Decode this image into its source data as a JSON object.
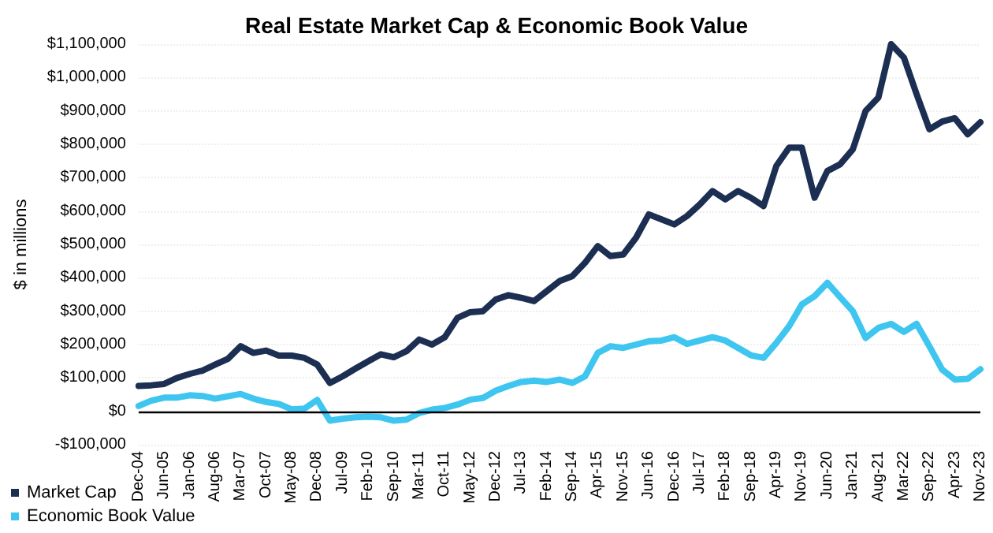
{
  "chart_data": {
    "type": "line",
    "title": "Real Estate Market Cap & Economic Book Value",
    "ylabel": "$ in millions",
    "categories": [
      "Dec-04",
      null,
      "Jun-05",
      null,
      "Jan-06",
      null,
      "Aug-06",
      null,
      "Mar-07",
      null,
      "Oct-07",
      null,
      "May-08",
      null,
      "Dec-08",
      null,
      "Jul-09",
      null,
      "Feb-10",
      null,
      "Sep-10",
      null,
      "Mar-11",
      null,
      "Oct-11",
      null,
      "May-12",
      null,
      "Dec-12",
      null,
      "Jul-13",
      null,
      "Feb-14",
      null,
      "Sep-14",
      null,
      "Apr-15",
      null,
      "Nov-15",
      null,
      "Jun-16",
      null,
      "Dec-16",
      null,
      "Jul-17",
      null,
      "Feb-18",
      null,
      "Sep-18",
      null,
      "Apr-19",
      null,
      "Nov-19",
      null,
      "Jun-20",
      null,
      "Jan-21",
      null,
      "Aug-21",
      null,
      "Mar-22",
      null,
      "Sep-22",
      null,
      "Apr-23",
      null,
      "Nov-23"
    ],
    "series": [
      {
        "name": "Market Cap",
        "color": "#1c2f52",
        "values": [
          76000,
          78000,
          82000,
          100000,
          112000,
          122000,
          140000,
          157000,
          195000,
          175000,
          182000,
          167000,
          167000,
          160000,
          140000,
          85000,
          105000,
          128000,
          150000,
          171000,
          162000,
          180000,
          215000,
          200000,
          222000,
          280000,
          297000,
          300000,
          335000,
          348000,
          340000,
          330000,
          360000,
          390000,
          405000,
          445000,
          495000,
          465000,
          470000,
          520000,
          590000,
          575000,
          560000,
          585000,
          620000,
          660000,
          635000,
          660000,
          640000,
          615000,
          735000,
          790000,
          790000,
          640000,
          720000,
          740000,
          785000,
          900000,
          940000,
          1100000,
          1060000,
          950000,
          845000,
          868000,
          878000,
          830000,
          866000
        ]
      },
      {
        "name": "Economic Book Value",
        "color": "#3ec6f0",
        "values": [
          16000,
          32000,
          41000,
          41000,
          48000,
          46000,
          38000,
          45000,
          52000,
          38000,
          28000,
          22000,
          6000,
          8000,
          34000,
          -28000,
          -22000,
          -18000,
          -16000,
          -18000,
          -28000,
          -25000,
          -5000,
          5000,
          10000,
          20000,
          35000,
          40000,
          62000,
          76000,
          88000,
          92000,
          88000,
          95000,
          85000,
          105000,
          175000,
          195000,
          190000,
          200000,
          210000,
          212000,
          222000,
          202000,
          212000,
          222000,
          212000,
          190000,
          168000,
          160000,
          205000,
          255000,
          320000,
          345000,
          385000,
          342000,
          300000,
          220000,
          250000,
          262000,
          238000,
          262000,
          195000,
          125000,
          95000,
          97000,
          126000
        ]
      }
    ],
    "ylim": [
      -100000,
      1100000
    ],
    "yticks": [
      {
        "value": -100000,
        "label": "-$100,000"
      },
      {
        "value": 0,
        "label": "$0"
      },
      {
        "value": 100000,
        "label": "$100,000"
      },
      {
        "value": 200000,
        "label": "$200,000"
      },
      {
        "value": 300000,
        "label": "$300,000"
      },
      {
        "value": 400000,
        "label": "$400,000"
      },
      {
        "value": 500000,
        "label": "$500,000"
      },
      {
        "value": 600000,
        "label": "$600,000"
      },
      {
        "value": 700000,
        "label": "$700,000"
      },
      {
        "value": 800000,
        "label": "$800,000"
      },
      {
        "value": 900000,
        "label": "$900,000"
      },
      {
        "value": 1000000,
        "label": "$1,000,000"
      },
      {
        "value": 1100000,
        "label": "$1,100,000"
      }
    ],
    "ref_lines": [
      {
        "axis": "y",
        "value": 0,
        "color": "#000000"
      }
    ],
    "grid": "y",
    "legend": "bottom left",
    "marker": "none",
    "line_style": "solid"
  }
}
